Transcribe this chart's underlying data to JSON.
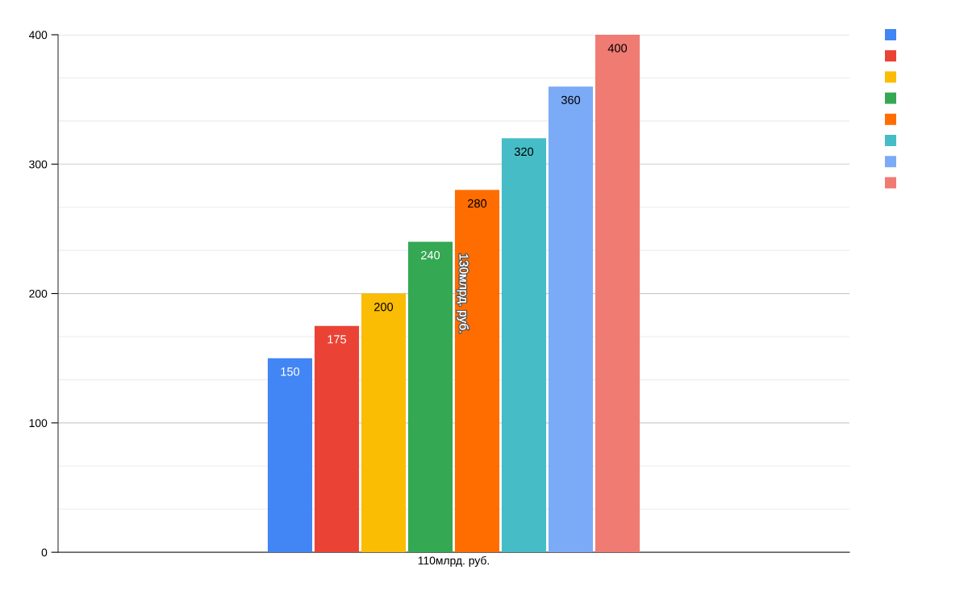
{
  "chart_data": {
    "type": "bar",
    "categories": [
      "110млрд. руб."
    ],
    "series": [
      {
        "color": "#4285f4",
        "values": [
          150
        ]
      },
      {
        "color": "#ea4335",
        "values": [
          175
        ]
      },
      {
        "color": "#fbbc04",
        "values": [
          200
        ]
      },
      {
        "color": "#34a853",
        "values": [
          240
        ]
      },
      {
        "color": "#ff6d01",
        "values": [
          280
        ]
      },
      {
        "color": "#46bdc6",
        "values": [
          320
        ]
      },
      {
        "color": "#7baaf7",
        "values": [
          360
        ]
      },
      {
        "color": "#f07b72",
        "values": [
          400
        ]
      }
    ],
    "ylim": [
      0,
      400
    ],
    "yticks": [
      0,
      100,
      200,
      300,
      400
    ],
    "grid": "y",
    "data_labels": true,
    "annotations": [
      "130млрд. руб."
    ]
  }
}
